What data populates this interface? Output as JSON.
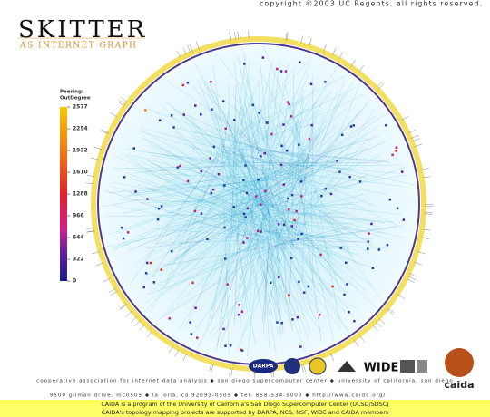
{
  "header": {
    "copyright": "copyright ©2003 UC Regents.  all rights reserved.",
    "title": "SKITTER",
    "subtitle": "AS INTERNET GRAPH"
  },
  "legend": {
    "title": "Peering:",
    "subtitle": "OutDegree",
    "range": [
      0,
      2577
    ],
    "ticks": [
      0,
      322,
      644,
      966,
      1288,
      1610,
      1932,
      2254,
      2577
    ]
  },
  "logos": {
    "darpa": "DARPA",
    "wide": "WIDE",
    "caida": "caida"
  },
  "footer": {
    "line1": "cooperative association for internet data analysis  ◆  san diego supercomputer center  ◆  university of california, san diego",
    "line2": "9500 gilman drive, mc0505  ◆  la jolla, ca  92093-0505  ◆  tel: 858-534-5000  ◆  http://www.caida.org/"
  },
  "banner": {
    "line1": "CAIDA is a program of the University of California's San Diego Supercomputer Center (UCSD/SDSC)",
    "line2": "CAIDA's topology mapping projects are supported by DARPA, NCS, NSF, WIDE and CAIDA members"
  }
}
